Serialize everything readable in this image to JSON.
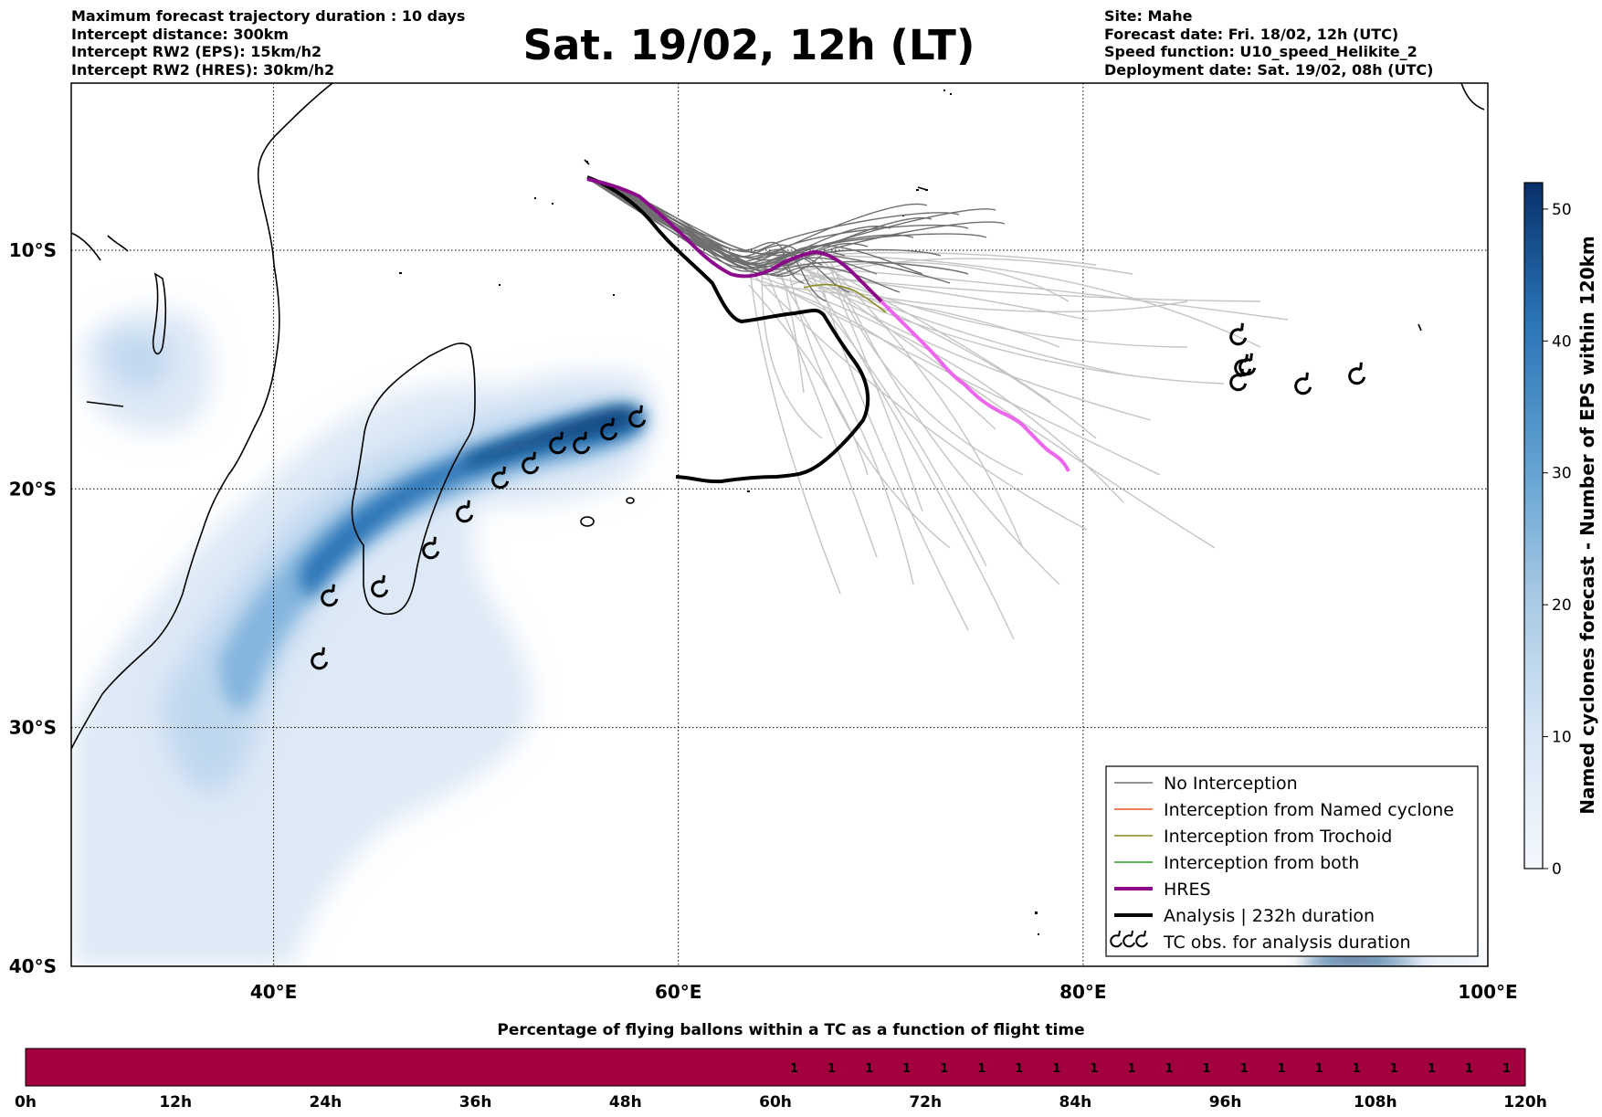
{
  "header": {
    "left_lines": [
      "Maximum forecast trajectory duration : 10 days",
      "Intercept distance: 300km",
      "Intercept RW2 (EPS):  15km/h2",
      "Intercept RW2 (HRES): 30km/h2"
    ],
    "title": "Sat. 19/02, 12h (LT)",
    "right_lines": [
      "Site: Mahe",
      "Forecast date: Fri. 18/02, 12h (UTC)",
      "Speed function: U10_speed_Helikite_2",
      "Deployment date: Sat. 19/02, 08h (UTC)"
    ]
  },
  "map": {
    "lon_range": [
      30,
      100
    ],
    "lat_range": [
      -3,
      -40
    ],
    "lat_labels": [
      {
        "lat": -10,
        "text": "10°S"
      },
      {
        "lat": -20,
        "text": "20°S"
      },
      {
        "lat": -30,
        "text": "30°S"
      },
      {
        "lat": -40,
        "text": "40°S"
      }
    ],
    "lon_labels": [
      {
        "lon": 40,
        "text": "40°E"
      },
      {
        "lon": 60,
        "text": "60°E"
      },
      {
        "lon": 80,
        "text": "80°E"
      },
      {
        "lon": 100,
        "text": "100°E"
      }
    ],
    "legend": [
      {
        "label": "No Interception",
        "color": "#6e6e6e",
        "width": 1.5,
        "key": "line"
      },
      {
        "label": "Interception from Named cyclone",
        "color": "#e8541e",
        "width": 1.5,
        "key": "line"
      },
      {
        "label": "Interception from Trochoid",
        "color": "#8a8a1a",
        "width": 1.5,
        "key": "line"
      },
      {
        "label": "Interception from both",
        "color": "#2a9a2a",
        "width": 1.5,
        "key": "line"
      },
      {
        "label": "HRES",
        "color": "#8b0a8b",
        "width": 4,
        "key": "line"
      },
      {
        "label": "Analysis | 232h duration",
        "color": "#000000",
        "width": 4,
        "key": "line"
      },
      {
        "label": "TC obs. for analysis duration",
        "color": "#000000",
        "width": 2,
        "key": "symbol"
      }
    ],
    "colors": {
      "hres": "#8b0a8b",
      "hres_tail": "#ee66ee",
      "analysis": "#000000",
      "eps_dark": "#6e6e6e",
      "eps_light": "#c4c4c4",
      "density_light": "#dde9f6",
      "density_mid": "#7fb2dc",
      "density_dark": "#08457e"
    }
  },
  "colorbar": {
    "label": "Named cyclones forecast - Number of EPS within 120km",
    "ticks": [
      "0",
      "10",
      "20",
      "30",
      "40",
      "50"
    ],
    "tick_values": [
      0,
      10,
      20,
      30,
      40,
      50
    ],
    "max": 52,
    "colors": [
      "#f4f8fd",
      "#d6e6f4",
      "#a6c8e4",
      "#5e9fd0",
      "#2a74b6",
      "#08306b"
    ]
  },
  "timeline": {
    "title": "Percentage of flying ballons within a TC as a function of flight time",
    "tick_labels": [
      "0h",
      "12h",
      "24h",
      "36h",
      "48h",
      "60h",
      "72h",
      "84h",
      "96h",
      "108h",
      "120h"
    ],
    "hours_max": 120,
    "cell_hours": 3,
    "values_start_hour": 60,
    "cell_value": "1",
    "bar_color": "#a3003f"
  }
}
